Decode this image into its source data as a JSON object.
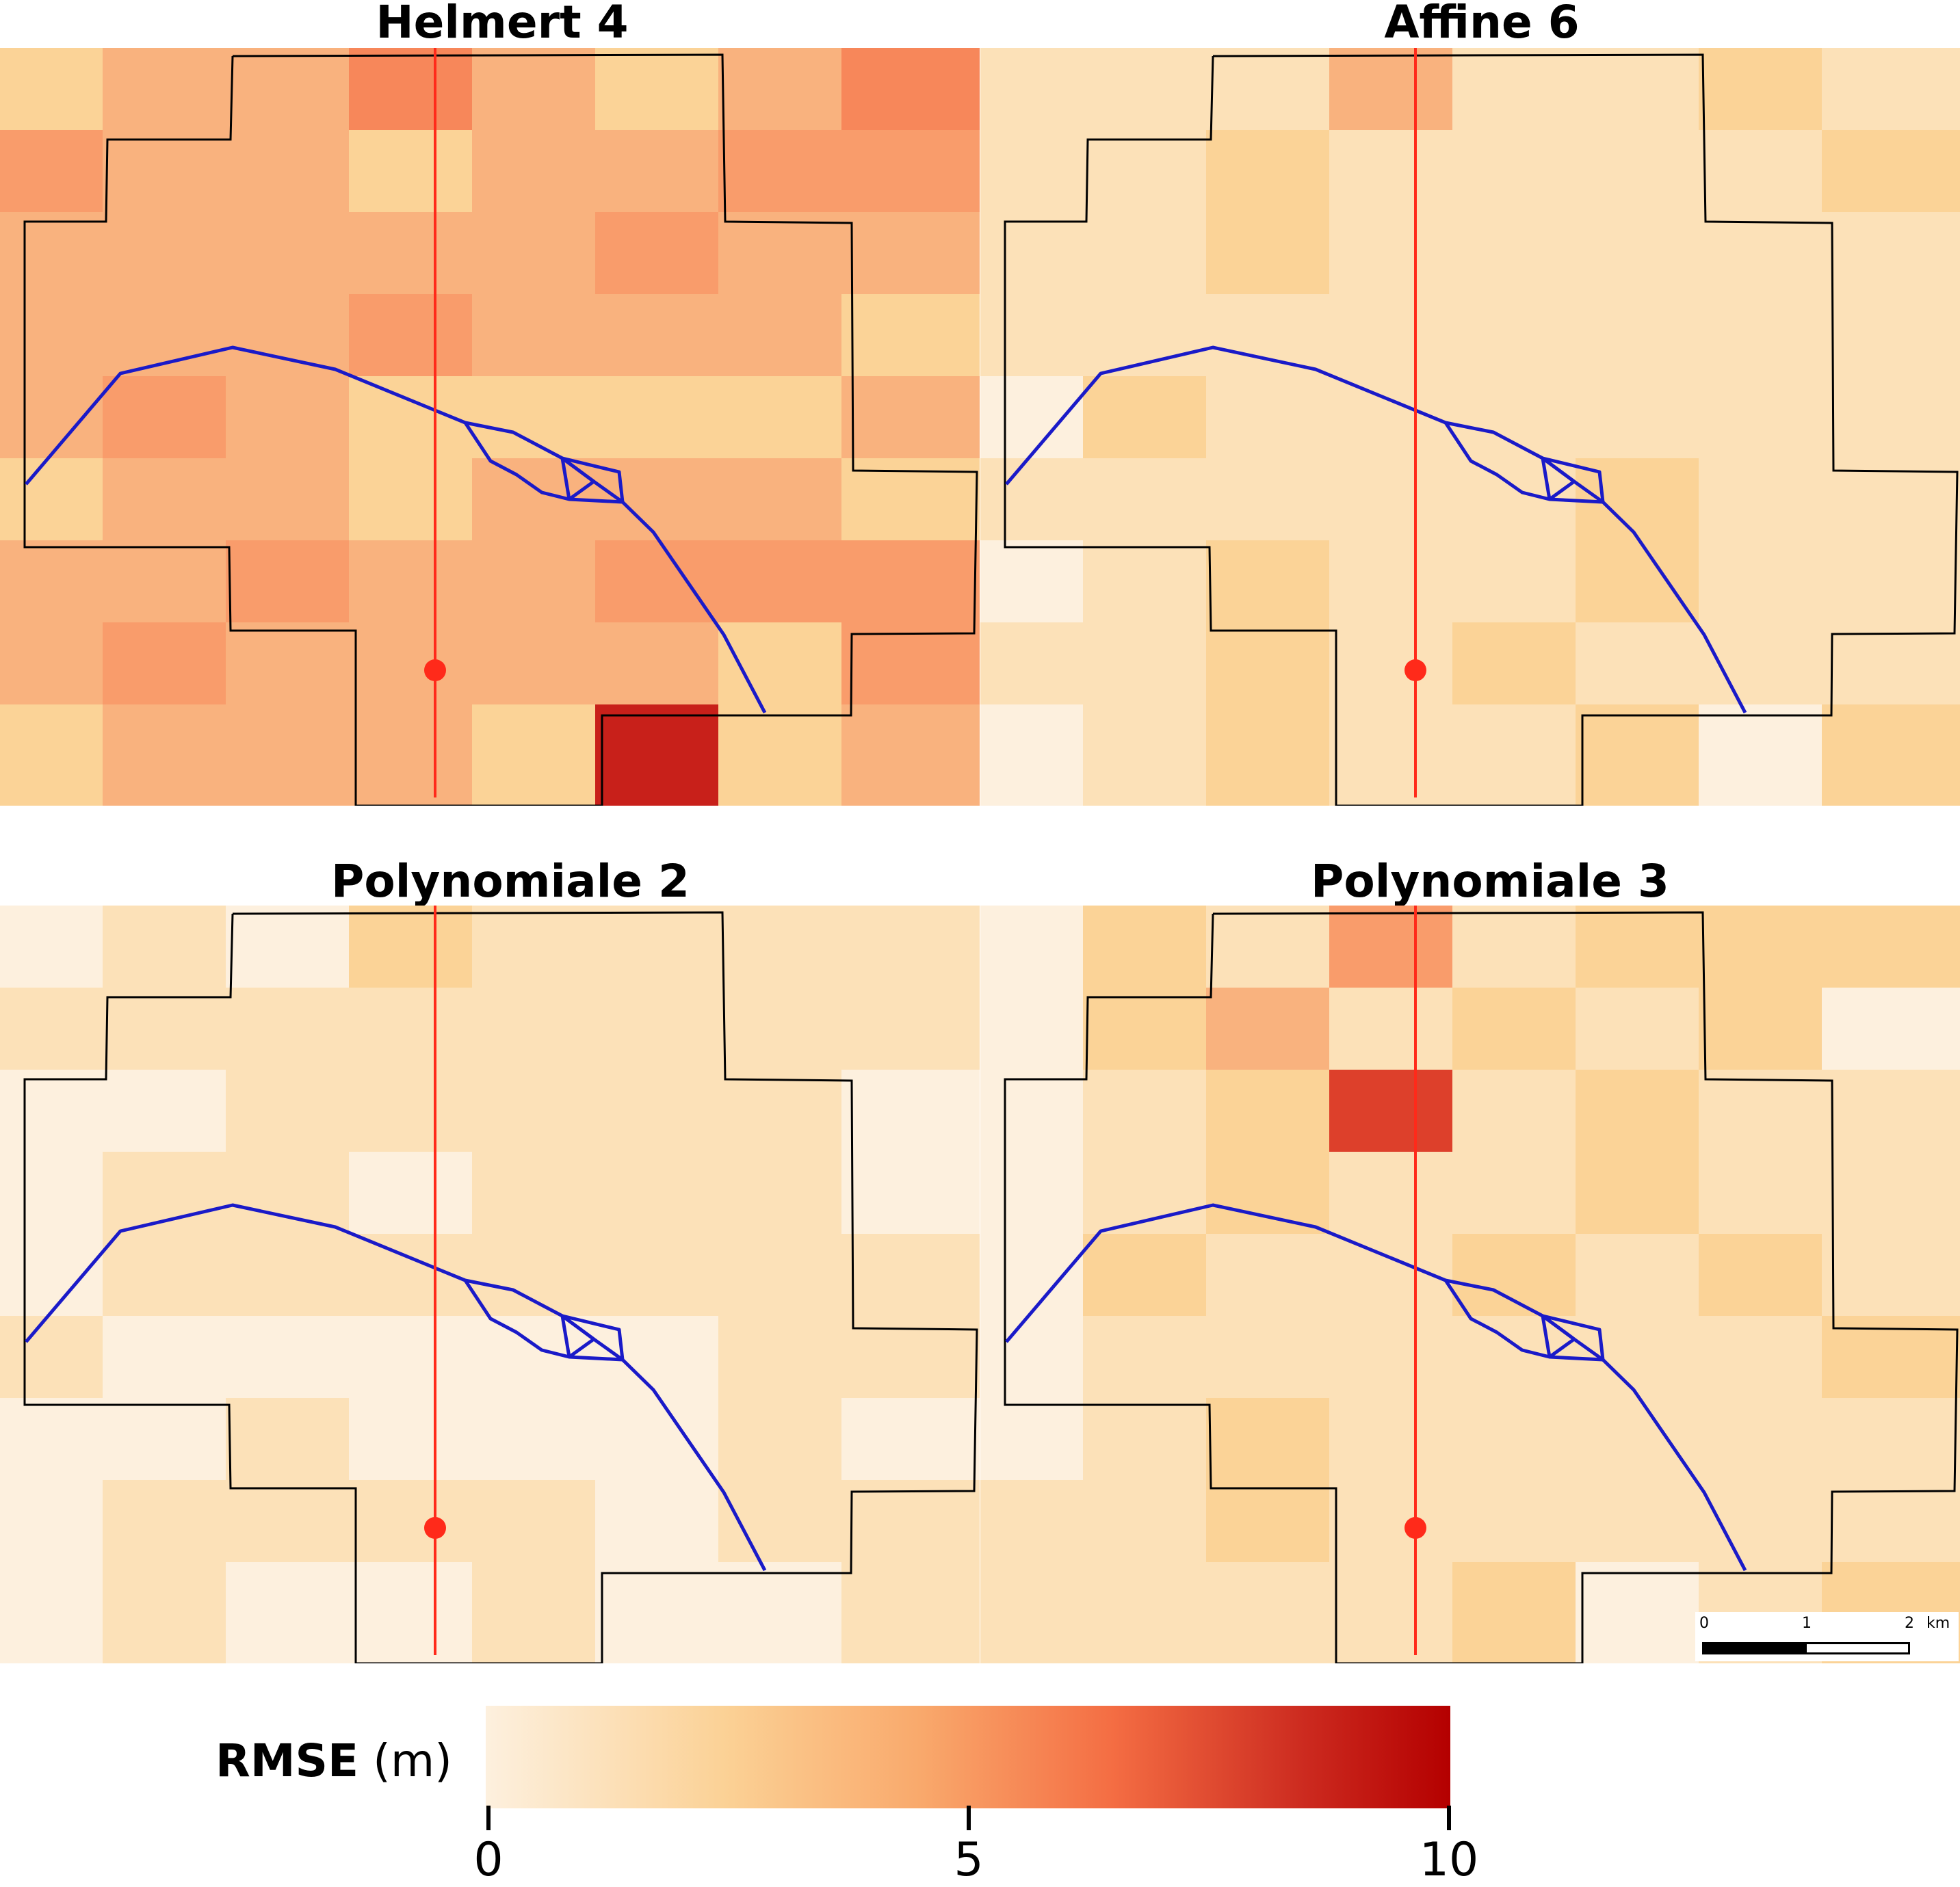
{
  "panels": [
    {
      "title": "Helmert 4",
      "grid": [
        [
          "#fbd397",
          "#f9b27e",
          "#f9b27e",
          "#f7875a",
          "#f9b27e",
          "#fbd397",
          "#f9b27e",
          "#f7875a"
        ],
        [
          "#f99c6b",
          "#f9b27e",
          "#f9b27e",
          "#fbd397",
          "#f9b27e",
          "#f9b27e",
          "#f99c6b",
          "#f99c6b"
        ],
        [
          "#f9b27e",
          "#f9b27e",
          "#f9b27e",
          "#f9b27e",
          "#f9b27e",
          "#f99c6b",
          "#f9b27e",
          "#f9b27e"
        ],
        [
          "#f9b27e",
          "#f9b27e",
          "#f9b27e",
          "#f99c6b",
          "#f9b27e",
          "#f9b27e",
          "#f9b27e",
          "#fbd397"
        ],
        [
          "#f9b27e",
          "#f99c6b",
          "#f9b27e",
          "#fbd397",
          "#fbd397",
          "#fbd397",
          "#fbd397",
          "#f9b27e"
        ],
        [
          "#fbd397",
          "#f9b27e",
          "#f9b27e",
          "#fbd397",
          "#f9b27e",
          "#f9b27e",
          "#f9b27e",
          "#fbd397"
        ],
        [
          "#f9b27e",
          "#f9b27e",
          "#f99c6b",
          "#f9b27e",
          "#f9b27e",
          "#f99c6b",
          "#f99c6b",
          "#f99c6b"
        ],
        [
          "#f9b27e",
          "#f99c6b",
          "#f9b27e",
          "#f9b27e",
          "#f9b27e",
          "#f9b27e",
          "#fbd397",
          "#f99c6b"
        ],
        [
          "#fbd397",
          "#f9b27e",
          "#f9b27e",
          "#f9b27e",
          "#fbd397",
          "#c8201a",
          "#fbd397",
          "#f9b27e"
        ]
      ]
    },
    {
      "title": "Affine 6",
      "grid": [
        [
          "#fce1b8",
          "#fce1b8",
          "#fce1b8",
          "#f9b27e",
          "#fce1b8",
          "#fce1b8",
          "#fbd397",
          "#fce1b8"
        ],
        [
          "#fce1b8",
          "#fce1b8",
          "#fbd397",
          "#fce1b8",
          "#fce1b8",
          "#fce1b8",
          "#fce1b8",
          "#fbd397"
        ],
        [
          "#fce1b8",
          "#fce1b8",
          "#fbd397",
          "#fce1b8",
          "#fce1b8",
          "#fce1b8",
          "#fce1b8",
          "#fce1b8"
        ],
        [
          "#fce1b8",
          "#fce1b8",
          "#fce1b8",
          "#fce1b8",
          "#fce1b8",
          "#fce1b8",
          "#fce1b8",
          "#fce1b8"
        ],
        [
          "#fdf0de",
          "#fbd397",
          "#fce1b8",
          "#fce1b8",
          "#fce1b8",
          "#fce1b8",
          "#fce1b8",
          "#fce1b8"
        ],
        [
          "#fce1b8",
          "#fce1b8",
          "#fce1b8",
          "#fce1b8",
          "#fce1b8",
          "#fbd397",
          "#fce1b8",
          "#fce1b8"
        ],
        [
          "#fdf0de",
          "#fce1b8",
          "#fbd397",
          "#fce1b8",
          "#fce1b8",
          "#fbd397",
          "#fce1b8",
          "#fce1b8"
        ],
        [
          "#fce1b8",
          "#fce1b8",
          "#fbd397",
          "#fce1b8",
          "#fbd397",
          "#fce1b8",
          "#fce1b8",
          "#fce1b8"
        ],
        [
          "#fdf0de",
          "#fce1b8",
          "#fbd397",
          "#fce1b8",
          "#fce1b8",
          "#fbd397",
          "#fdf0de",
          "#fbd397"
        ]
      ]
    },
    {
      "title": "Polynomiale 2",
      "grid": [
        [
          "#fdf0de",
          "#fce1b8",
          "#fdf0de",
          "#fbd397",
          "#fce1b8",
          "#fce1b8",
          "#fce1b8",
          "#fce1b8"
        ],
        [
          "#fce1b8",
          "#fce1b8",
          "#fce1b8",
          "#fce1b8",
          "#fce1b8",
          "#fce1b8",
          "#fce1b8",
          "#fce1b8"
        ],
        [
          "#fdf0de",
          "#fdf0de",
          "#fce1b8",
          "#fce1b8",
          "#fce1b8",
          "#fce1b8",
          "#fce1b8",
          "#fdf0de"
        ],
        [
          "#fdf0de",
          "#fce1b8",
          "#fce1b8",
          "#fdf0de",
          "#fce1b8",
          "#fce1b8",
          "#fce1b8",
          "#fdf0de"
        ],
        [
          "#fdf0de",
          "#fce1b8",
          "#fce1b8",
          "#fce1b8",
          "#fce1b8",
          "#fce1b8",
          "#fce1b8",
          "#fce1b8"
        ],
        [
          "#fce1b8",
          "#fdf0de",
          "#fdf0de",
          "#fdf0de",
          "#fdf0de",
          "#fdf0de",
          "#fce1b8",
          "#fce1b8"
        ],
        [
          "#fdf0de",
          "#fdf0de",
          "#fce1b8",
          "#fdf0de",
          "#fdf0de",
          "#fdf0de",
          "#fce1b8",
          "#fdf0de"
        ],
        [
          "#fdf0de",
          "#fce1b8",
          "#fce1b8",
          "#fce1b8",
          "#fce1b8",
          "#fdf0de",
          "#fce1b8",
          "#fce1b8"
        ],
        [
          "#fdf0de",
          "#fce1b8",
          "#fdf0de",
          "#fdf0de",
          "#fce1b8",
          "#fdf0de",
          "#fdf0de",
          "#fce1b8"
        ]
      ]
    },
    {
      "title": "Polynomiale 3",
      "grid": [
        [
          "#fdf0de",
          "#fbd397",
          "#fce1b8",
          "#f99c6b",
          "#fce1b8",
          "#fbd397",
          "#fbd397",
          "#fbd397"
        ],
        [
          "#fdf0de",
          "#fbd397",
          "#f9b27e",
          "#fce1b8",
          "#fbd397",
          "#fce1b8",
          "#fbd397",
          "#fdf0de"
        ],
        [
          "#fdf0de",
          "#fce1b8",
          "#fbd397",
          "#dd402b",
          "#fce1b8",
          "#fbd397",
          "#fce1b8",
          "#fce1b8"
        ],
        [
          "#fdf0de",
          "#fce1b8",
          "#fbd397",
          "#fce1b8",
          "#fce1b8",
          "#fbd397",
          "#fce1b8",
          "#fce1b8"
        ],
        [
          "#fdf0de",
          "#fbd397",
          "#fce1b8",
          "#fce1b8",
          "#fbd397",
          "#fce1b8",
          "#fbd397",
          "#fce1b8"
        ],
        [
          "#fdf0de",
          "#fce1b8",
          "#fce1b8",
          "#fce1b8",
          "#fce1b8",
          "#fce1b8",
          "#fce1b8",
          "#fbd397"
        ],
        [
          "#fdf0de",
          "#fce1b8",
          "#fbd397",
          "#fce1b8",
          "#fce1b8",
          "#fce1b8",
          "#fce1b8",
          "#fce1b8"
        ],
        [
          "#fce1b8",
          "#fce1b8",
          "#fbd397",
          "#fce1b8",
          "#fce1b8",
          "#fce1b8",
          "#fce1b8",
          "#fce1b8"
        ],
        [
          "#fce1b8",
          "#fce1b8",
          "#fce1b8",
          "#fce1b8",
          "#fbd397",
          "#fdf0de",
          "#fce1b8",
          "#fbd397"
        ]
      ]
    }
  ],
  "colors": {
    "boundary": "#000000",
    "river": "#1a1ac8",
    "profile_line": "#ff2a1a",
    "colorbar_stops": [
      "#fdf0de",
      "#fbd195",
      "#f9a96c",
      "#f46d43",
      "#cc2a1f",
      "#b40000"
    ]
  },
  "legend": {
    "label_bold": "RMSE",
    "label_unit": " (m)",
    "ticks": [
      "0",
      "5",
      "10"
    ],
    "range": [
      0,
      10
    ]
  },
  "scale_bar": {
    "ticks": [
      "0",
      "1",
      "2"
    ],
    "unit": "km"
  }
}
